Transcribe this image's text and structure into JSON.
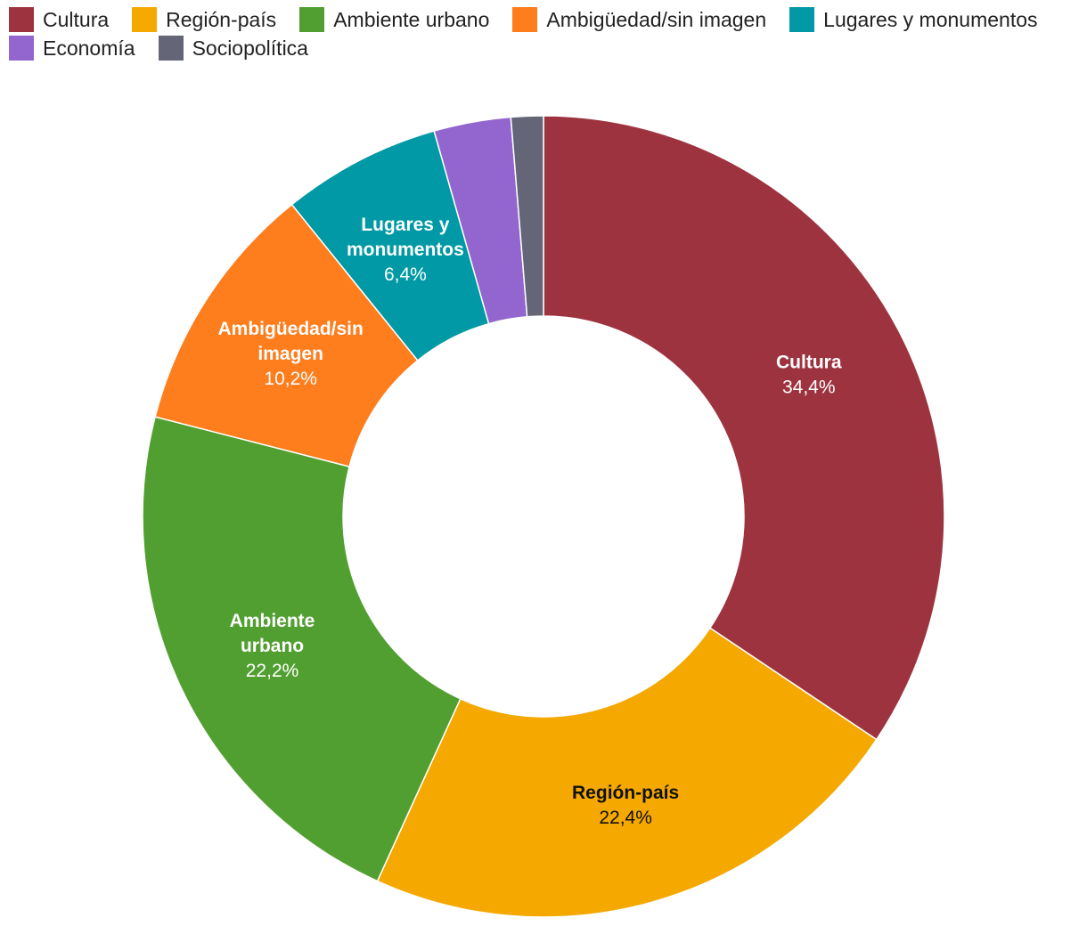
{
  "chart_data": {
    "type": "pie",
    "donut": true,
    "legend_position": "top-left",
    "slices": [
      {
        "name": "Cultura",
        "value": 34.4,
        "value_label": "34,4%",
        "label_lines": [
          "Cultura"
        ],
        "color": "#9e3340",
        "label_color": "#ffffff"
      },
      {
        "name": "Región-país",
        "value": 22.4,
        "value_label": "22,4%",
        "label_lines": [
          "Región-país"
        ],
        "color": "#f5a800",
        "label_color": "#111111"
      },
      {
        "name": "Ambiente urbano",
        "value": 22.2,
        "value_label": "22,2%",
        "label_lines": [
          "Ambiente",
          "urbano"
        ],
        "color": "#529f31",
        "label_color": "#ffffff"
      },
      {
        "name": "Ambigüedad/sin imagen",
        "value": 10.2,
        "value_label": "10,2%",
        "label_lines": [
          "Ambigüedad/sin",
          "imagen"
        ],
        "color": "#fe7d1d",
        "label_color": "#ffffff"
      },
      {
        "name": "Lugares y monumentos",
        "value": 6.4,
        "value_label": "6,4%",
        "label_lines": [
          "Lugares y",
          "monumentos"
        ],
        "color": "#0099a5",
        "label_color": "#ffffff"
      },
      {
        "name": "Economía",
        "value": 3.1,
        "value_label": "",
        "label_lines": [],
        "color": "#9366cf",
        "label_color": "#ffffff"
      },
      {
        "name": "Sociopolítica",
        "value": 1.3,
        "value_label": "",
        "label_lines": [],
        "color": "#646678",
        "label_color": "#ffffff"
      }
    ]
  }
}
